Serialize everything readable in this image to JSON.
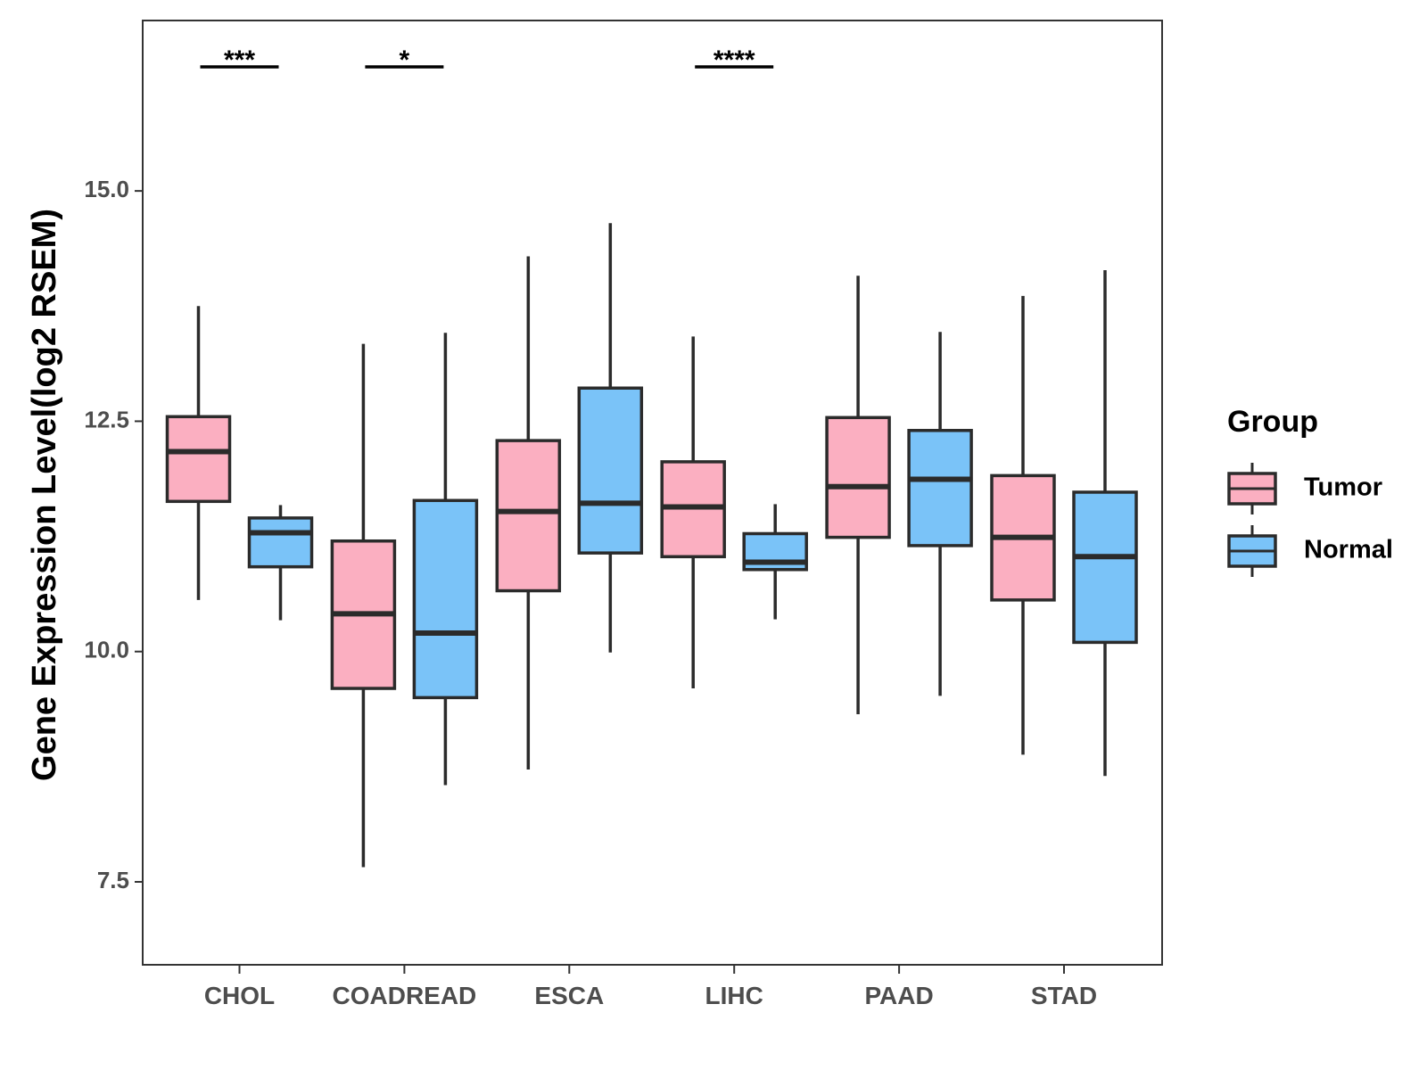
{
  "chart_data": {
    "type": "boxplot",
    "title": "",
    "xlabel": "",
    "ylabel": "Gene Expression Level(log2 RSEM)",
    "ylim": [
      6.6,
      16.85
    ],
    "yticks": [
      7.5,
      10.0,
      12.5,
      15.0
    ],
    "ytick_labels": [
      "7.5",
      "10.0",
      "12.5",
      "15.0"
    ],
    "categories": [
      "CHOL",
      "COADREAD",
      "ESCA",
      "LIHC",
      "PAAD",
      "STAD"
    ],
    "legend": {
      "title": "Group",
      "position": "right",
      "entries": [
        "Tumor",
        "Normal"
      ]
    },
    "series": [
      {
        "name": "Tumor",
        "color": "#FBAFC1",
        "boxes": [
          {
            "whisker_low": 10.56,
            "q1": 11.63,
            "median": 12.17,
            "q3": 12.55,
            "whisker_high": 13.75
          },
          {
            "whisker_low": 7.66,
            "q1": 9.6,
            "median": 10.41,
            "q3": 11.2,
            "whisker_high": 13.34
          },
          {
            "whisker_low": 8.72,
            "q1": 10.66,
            "median": 11.52,
            "q3": 12.29,
            "whisker_high": 14.29
          },
          {
            "whisker_low": 9.6,
            "q1": 11.03,
            "median": 11.57,
            "q3": 12.06,
            "whisker_high": 13.42
          },
          {
            "whisker_low": 9.32,
            "q1": 11.24,
            "median": 11.79,
            "q3": 12.54,
            "whisker_high": 14.08
          },
          {
            "whisker_low": 8.88,
            "q1": 10.56,
            "median": 11.24,
            "q3": 11.91,
            "whisker_high": 13.86
          }
        ]
      },
      {
        "name": "Normal",
        "color": "#7AC3F8",
        "boxes": [
          {
            "whisker_low": 10.34,
            "q1": 10.92,
            "median": 11.29,
            "q3": 11.45,
            "whisker_high": 11.59
          },
          {
            "whisker_low": 8.55,
            "q1": 9.5,
            "median": 10.2,
            "q3": 11.64,
            "whisker_high": 13.46
          },
          {
            "whisker_low": 9.99,
            "q1": 11.07,
            "median": 11.61,
            "q3": 12.86,
            "whisker_high": 14.65
          },
          {
            "whisker_low": 10.35,
            "q1": 10.89,
            "median": 10.97,
            "q3": 11.28,
            "whisker_high": 11.6
          },
          {
            "whisker_low": 9.52,
            "q1": 11.15,
            "median": 11.87,
            "q3": 12.4,
            "whisker_high": 13.47
          },
          {
            "whisker_low": 8.65,
            "q1": 10.1,
            "median": 11.03,
            "q3": 11.73,
            "whisker_high": 14.14
          }
        ]
      }
    ],
    "significance": [
      {
        "category": "CHOL",
        "label": "***"
      },
      {
        "category": "COADREAD",
        "label": "*"
      },
      {
        "category": "LIHC",
        "label": "****"
      }
    ]
  }
}
